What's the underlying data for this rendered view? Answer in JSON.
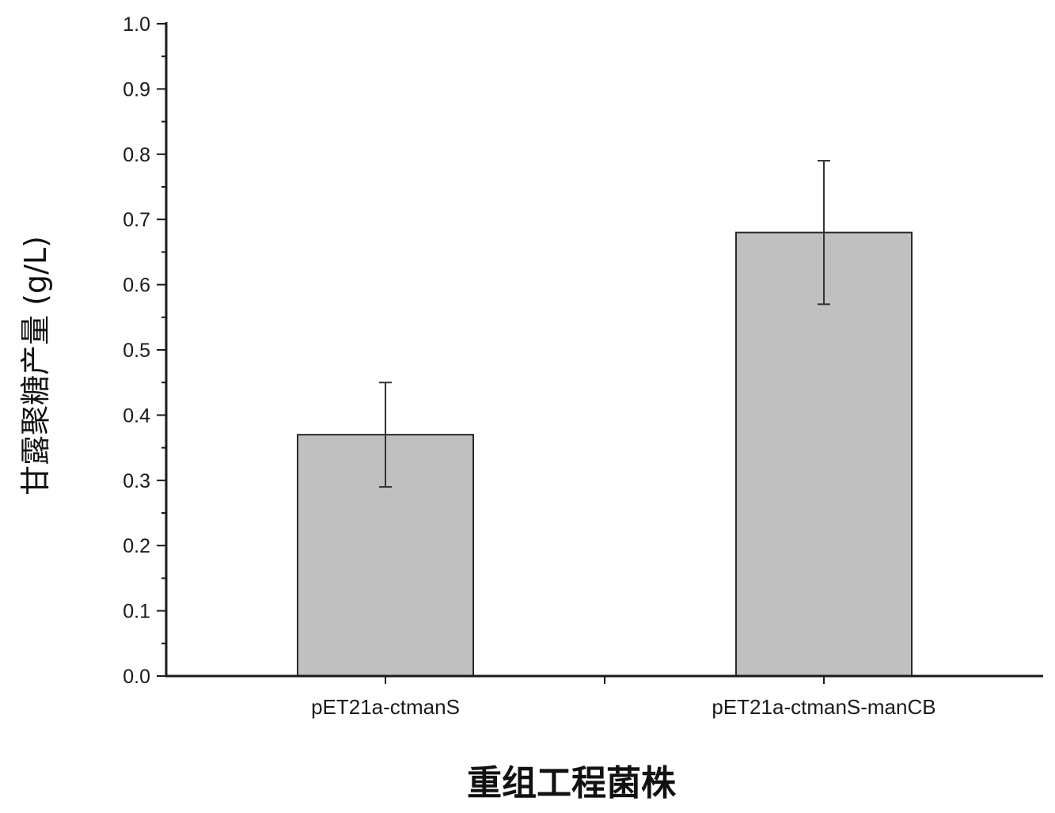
{
  "chart_data": {
    "type": "bar",
    "categories": [
      "pET21a-ctmanS",
      "pET21a-ctmanS-manCB"
    ],
    "values": [
      0.37,
      0.68
    ],
    "error_low": [
      0.29,
      0.57
    ],
    "error_high": [
      0.45,
      0.79
    ],
    "xlabel": "重组工程菌株",
    "ylabel": "甘露聚糖产量 (g/L)",
    "ylim": [
      0.0,
      1.0
    ],
    "yticks": [
      "0.0",
      "0.1",
      "0.2",
      "0.3",
      "0.4",
      "0.5",
      "0.6",
      "0.7",
      "0.8",
      "0.9",
      "1.0"
    ],
    "grid": false,
    "bar_color": "#c0c0c0",
    "bar_edge_color": "#2a2a2a",
    "axis_color": "#1a1a1a"
  }
}
